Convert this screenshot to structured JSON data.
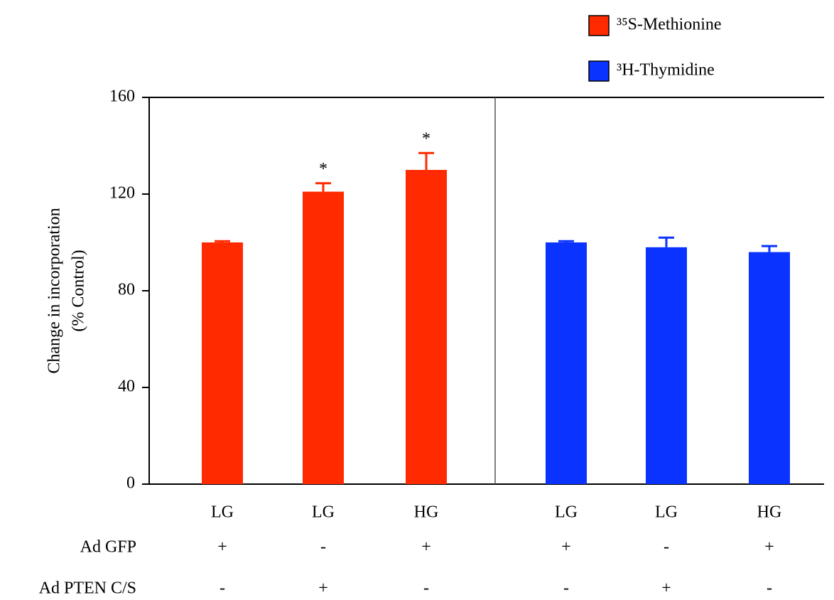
{
  "chart_data": {
    "type": "bar",
    "ylabel": [
      "Change in incorporation",
      "(% Control)"
    ],
    "categories": [
      "LG",
      "LG",
      "HG",
      "LG",
      "LG",
      "HG"
    ],
    "series": [
      {
        "name": "³⁵S-Methionine",
        "color": "#ff2a00",
        "values": [
          100,
          121,
          130,
          null,
          null,
          null
        ],
        "errors": [
          0.5,
          3.5,
          7,
          null,
          null,
          null
        ],
        "annotations": [
          null,
          "*",
          "*",
          null,
          null,
          null
        ]
      },
      {
        "name": "³H-Thymidine",
        "color": "#0a33ff",
        "values": [
          null,
          null,
          null,
          100,
          98,
          96
        ],
        "errors": [
          null,
          null,
          null,
          0.5,
          4,
          2.5
        ]
      }
    ],
    "rows": [
      {
        "label": "Ad GFP",
        "values": [
          "+",
          "-",
          "+",
          "+",
          "-",
          "+"
        ]
      },
      {
        "label": "Ad PTEN C/S",
        "values": [
          "-",
          "+",
          "-",
          "-",
          "+",
          "-"
        ]
      }
    ],
    "ylim": [
      0,
      160
    ],
    "yticks": [
      0,
      40,
      80,
      120,
      160
    ]
  }
}
